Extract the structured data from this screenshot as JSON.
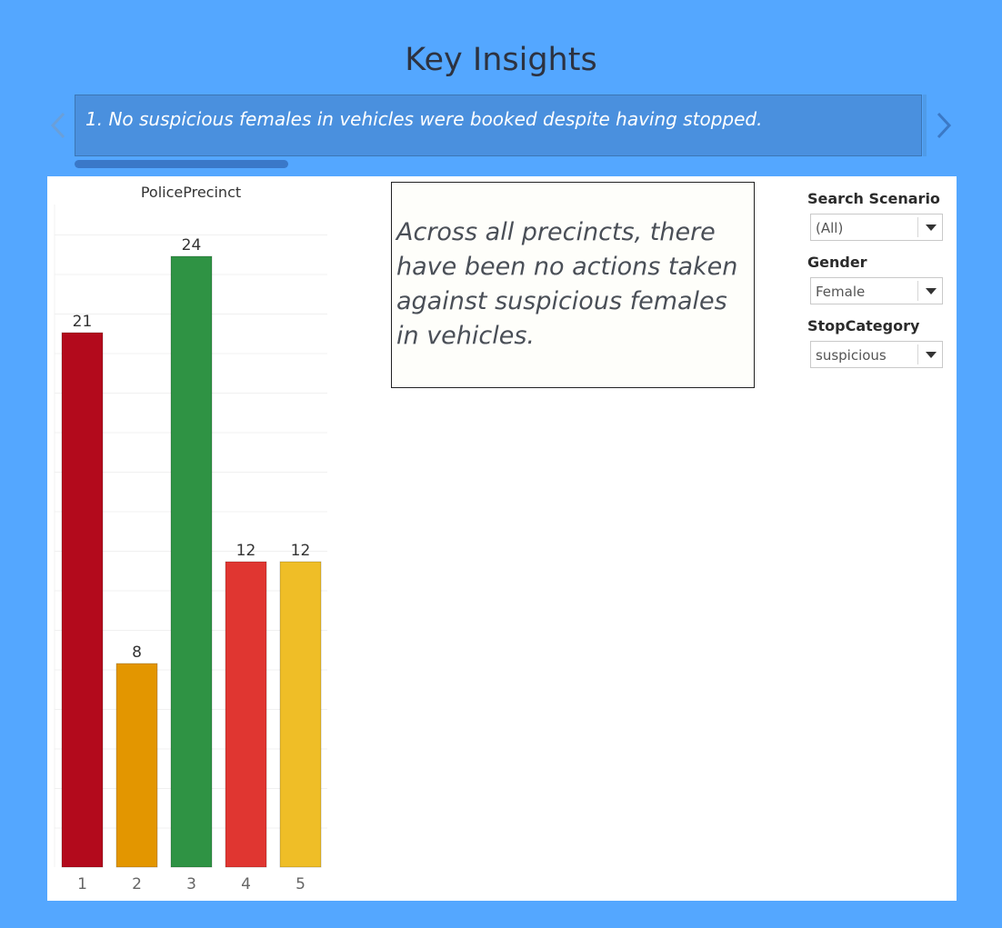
{
  "page": {
    "title": "Key Insights"
  },
  "story": {
    "caption": "1. No suspicious females in vehicles were  booked despite having stopped.",
    "prev_icon": "chevron-left-icon",
    "next_icon": "chevron-right-icon"
  },
  "note": {
    "text": "Across all precincts, there have been no actions taken against suspicious females in vehicles."
  },
  "filters": [
    {
      "label": "Search Scenario",
      "value": "(All)"
    },
    {
      "label": "Gender",
      "value": "Female"
    },
    {
      "label": "StopCategory",
      "value": "suspicious"
    }
  ],
  "chart_data": {
    "type": "bar",
    "title": "PolicePrecinct",
    "categories": [
      "1",
      "2",
      "3",
      "4",
      "5"
    ],
    "values": [
      21,
      8,
      24,
      12,
      12
    ],
    "colors": [
      "#b30a1c",
      "#e39600",
      "#2f9344",
      "#e03631",
      "#efbe27"
    ],
    "grid": true,
    "legend": "none"
  }
}
